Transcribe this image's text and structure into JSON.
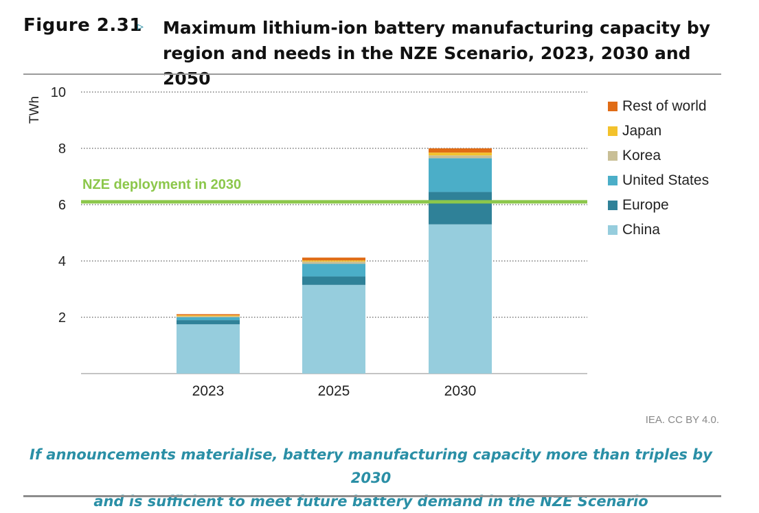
{
  "figure": {
    "label": "Figure 2.31",
    "arrow": "▹",
    "title": "Maximum lithium-ion battery manufacturing capacity by region and needs in the NZE Scenario, 2023, 2030 and 2050"
  },
  "source": "IEA. CC BY 4.0.",
  "caption_lines": [
    "If announcements materialise, battery manufacturing capacity more than triples by 2030",
    "and is sufficient to meet future battery demand in the NZE Scenario"
  ],
  "chart_data": {
    "type": "bar",
    "stacked": true,
    "categories": [
      "2023",
      "2025",
      "2030"
    ],
    "ylabel": "TWh",
    "ylim": [
      0,
      10
    ],
    "yticks": [
      2,
      4,
      6,
      8,
      10
    ],
    "grid": true,
    "legend_position": "right",
    "series": [
      {
        "name": "China",
        "color": "#96cddd",
        "values": [
          1.75,
          3.15,
          5.3
        ]
      },
      {
        "name": "Europe",
        "color": "#2f8198",
        "values": [
          0.15,
          0.3,
          1.15
        ]
      },
      {
        "name": "United States",
        "color": "#4baec8",
        "values": [
          0.1,
          0.45,
          1.2
        ]
      },
      {
        "name": "Korea",
        "color": "#c9bf96",
        "values": [
          0.04,
          0.08,
          0.1
        ]
      },
      {
        "name": "Japan",
        "color": "#f3c22c",
        "values": [
          0.03,
          0.04,
          0.1
        ]
      },
      {
        "name": "Rest of world",
        "color": "#e06c16",
        "values": [
          0.04,
          0.1,
          0.15
        ]
      }
    ],
    "reference_line": {
      "label": "NZE deployment in 2030",
      "value": 6.1,
      "color": "#8cc74b"
    }
  }
}
